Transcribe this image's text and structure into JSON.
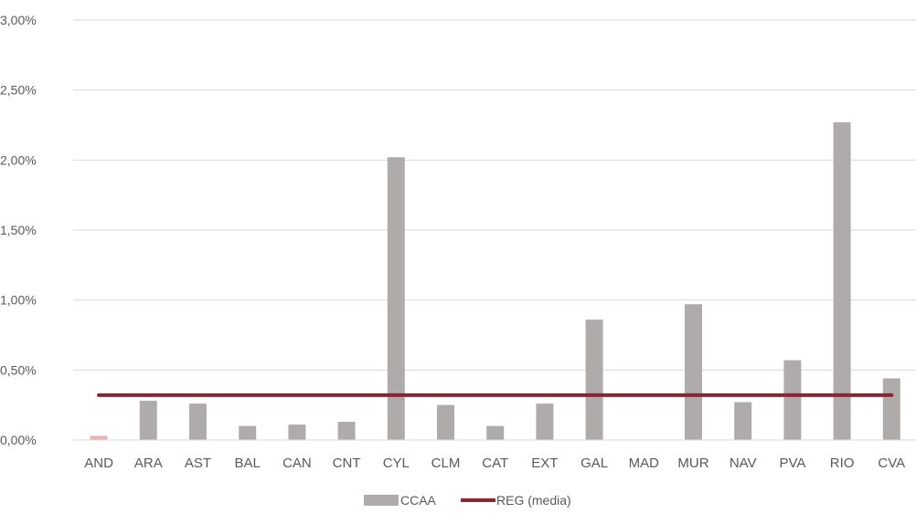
{
  "chart_data": {
    "type": "bar",
    "categories": [
      "AND",
      "ARA",
      "AST",
      "BAL",
      "CAN",
      "CNT",
      "CYL",
      "CLM",
      "CAT",
      "EXT",
      "GAL",
      "MAD",
      "MUR",
      "NAV",
      "PVA",
      "RIO",
      "CVA"
    ],
    "series": [
      {
        "name": "CCAA",
        "type": "bar",
        "color": "#afabab",
        "values": [
          0.03,
          0.28,
          0.26,
          0.1,
          0.11,
          0.13,
          2.02,
          0.25,
          0.1,
          0.26,
          0.86,
          0.0,
          0.97,
          0.27,
          0.57,
          2.27,
          0.44
        ]
      },
      {
        "name": "REG (media)",
        "type": "line",
        "color": "#8b2530",
        "values": [
          0.32,
          0.32,
          0.32,
          0.32,
          0.32,
          0.32,
          0.32,
          0.32,
          0.32,
          0.32,
          0.32,
          0.32,
          0.32,
          0.32,
          0.32,
          0.32,
          0.32
        ]
      }
    ],
    "highlight": {
      "category": "AND",
      "color": "#e8b3b5"
    },
    "yticks": [
      "0,00%",
      "0,50%",
      "1,00%",
      "1,50%",
      "2,00%",
      "2,50%",
      "3,00%"
    ],
    "ylim": [
      0,
      3
    ],
    "grid": true,
    "legend_position": "bottom-center",
    "title": "",
    "xlabel": "",
    "ylabel": ""
  }
}
